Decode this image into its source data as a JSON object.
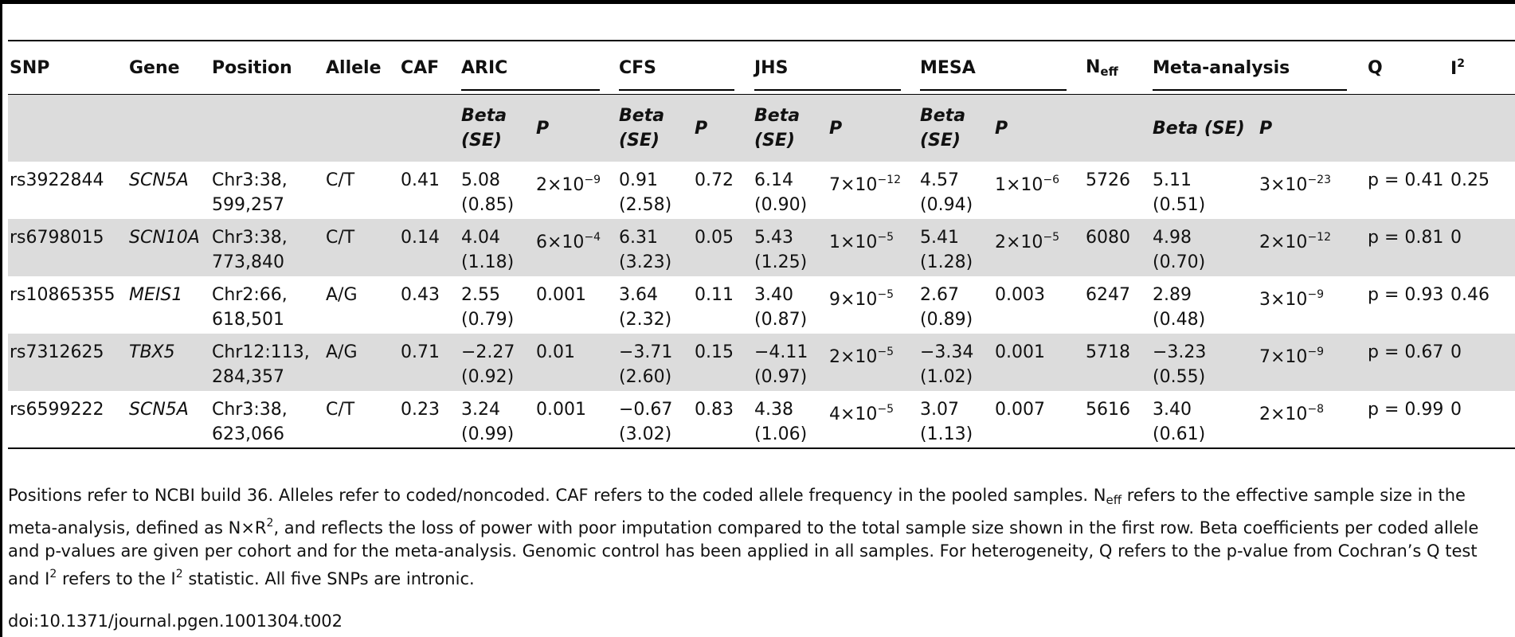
{
  "header": {
    "snp": "SNP",
    "gene": "Gene",
    "position": "Position",
    "allele": "Allele",
    "caf": "CAF",
    "aric": "ARIC",
    "cfs": "CFS",
    "jhs": "JHS",
    "mesa": "MESA",
    "neff_base": "N",
    "neff_sub": "eff",
    "meta": "Meta-analysis",
    "q": "Q",
    "i2_base": "I",
    "i2_sup": "2"
  },
  "subheader": {
    "beta_line1": "Beta",
    "beta_line2": "(SE)",
    "p": "P",
    "meta_beta": "Beta (SE)"
  },
  "rows": [
    {
      "snp": "rs3922844",
      "gene": "SCN5A",
      "pos1": "Chr3:38,",
      "pos2": "599,257",
      "allele": "C/T",
      "caf": "0.41",
      "aric_b": "5.08",
      "aric_se": "(0.85)",
      "aric_p_base": "2×10",
      "aric_p_exp": "−9",
      "cfs_b": "0.91",
      "cfs_se": "(2.58)",
      "cfs_p": "0.72",
      "jhs_b": "6.14",
      "jhs_se": "(0.90)",
      "jhs_p_base": "7×10",
      "jhs_p_exp": "−12",
      "mesa_b": "4.57",
      "mesa_se": "(0.94)",
      "mesa_p_base": "1×10",
      "mesa_p_exp": "−6",
      "neff": "5726",
      "meta_b": "5.11",
      "meta_se": "(0.51)",
      "meta_p_base": "3×10",
      "meta_p_exp": "−23",
      "q": "p = 0.41",
      "i2": "0.25"
    },
    {
      "snp": "rs6798015",
      "gene": "SCN10A",
      "pos1": "Chr3:38,",
      "pos2": "773,840",
      "allele": "C/T",
      "caf": "0.14",
      "aric_b": "4.04",
      "aric_se": "(1.18)",
      "aric_p_base": "6×10",
      "aric_p_exp": "−4",
      "cfs_b": "6.31",
      "cfs_se": "(3.23)",
      "cfs_p": "0.05",
      "jhs_b": "5.43",
      "jhs_se": "(1.25)",
      "jhs_p_base": "1×10",
      "jhs_p_exp": "−5",
      "mesa_b": "5.41",
      "mesa_se": "(1.28)",
      "mesa_p_base": "2×10",
      "mesa_p_exp": "−5",
      "neff": "6080",
      "meta_b": "4.98",
      "meta_se": "(0.70)",
      "meta_p_base": "2×10",
      "meta_p_exp": "−12",
      "q": "p = 0.81",
      "i2": "0"
    },
    {
      "snp": "rs10865355",
      "gene": "MEIS1",
      "pos1": "Chr2:66,",
      "pos2": "618,501",
      "allele": "A/G",
      "caf": "0.43",
      "aric_b": "2.55",
      "aric_se": "(0.79)",
      "aric_p": "0.001",
      "cfs_b": "3.64",
      "cfs_se": "(2.32)",
      "cfs_p": "0.11",
      "jhs_b": "3.40",
      "jhs_se": "(0.87)",
      "jhs_p_base": "9×10",
      "jhs_p_exp": "−5",
      "mesa_b": "2.67",
      "mesa_se": "(0.89)",
      "mesa_p": "0.003",
      "neff": "6247",
      "meta_b": "2.89",
      "meta_se": "(0.48)",
      "meta_p_base": "3×10",
      "meta_p_exp": "−9",
      "q": "p = 0.93",
      "i2": "0.46"
    },
    {
      "snp": "rs7312625",
      "gene": "TBX5",
      "pos1": "Chr12:113,",
      "pos2": "284,357",
      "allele": "A/G",
      "caf": "0.71",
      "aric_b": "−2.27",
      "aric_se": "(0.92)",
      "aric_p": "0.01",
      "cfs_b": "−3.71",
      "cfs_se": "(2.60)",
      "cfs_p": "0.15",
      "jhs_b": "−4.11",
      "jhs_se": "(0.97)",
      "jhs_p_base": "2×10",
      "jhs_p_exp": "−5",
      "mesa_b": "−3.34",
      "mesa_se": "(1.02)",
      "mesa_p": "0.001",
      "neff": "5718",
      "meta_b": "−3.23",
      "meta_se": "(0.55)",
      "meta_p_base": "7×10",
      "meta_p_exp": "−9",
      "q": "p = 0.67",
      "i2": "0"
    },
    {
      "snp": "rs6599222",
      "gene": "SCN5A",
      "pos1": "Chr3:38,",
      "pos2": "623,066",
      "allele": "C/T",
      "caf": "0.23",
      "aric_b": "3.24",
      "aric_se": "(0.99)",
      "aric_p": "0.001",
      "cfs_b": "−0.67",
      "cfs_se": "(3.02)",
      "cfs_p": "0.83",
      "jhs_b": "4.38",
      "jhs_se": "(1.06)",
      "jhs_p_base": "4×10",
      "jhs_p_exp": "−5",
      "mesa_b": "3.07",
      "mesa_se": "(1.13)",
      "mesa_p": "0.007",
      "neff": "5616",
      "meta_b": "3.40",
      "meta_se": "(0.61)",
      "meta_p_base": "2×10",
      "meta_p_exp": "−8",
      "q": "p = 0.99",
      "i2": "0"
    }
  ],
  "notes": {
    "s1": "Positions refer to NCBI build 36. Alleles refer to coded/noncoded. CAF refers to the coded allele frequency in the pooled samples. N",
    "s1_sub": "eff",
    "s2": " refers to the effective sample size in the meta-analysis, defined as N×R",
    "s2_sup": "2",
    "s3": ", and reflects the loss of power with poor imputation compared to the total sample size shown in the first row. Beta coefficients per coded allele and p-values are given per cohort and for the meta-analysis. Genomic control has been applied in all samples. For heterogeneity, Q refers to the p-value from Cochran’s Q test and I",
    "s3_sup": "2",
    "s4": " refers to the I",
    "s4_sup": "2",
    "s5": " statistic. All five SNPs are intronic."
  },
  "doi": "doi:10.1371/journal.pgen.1001304.t002"
}
